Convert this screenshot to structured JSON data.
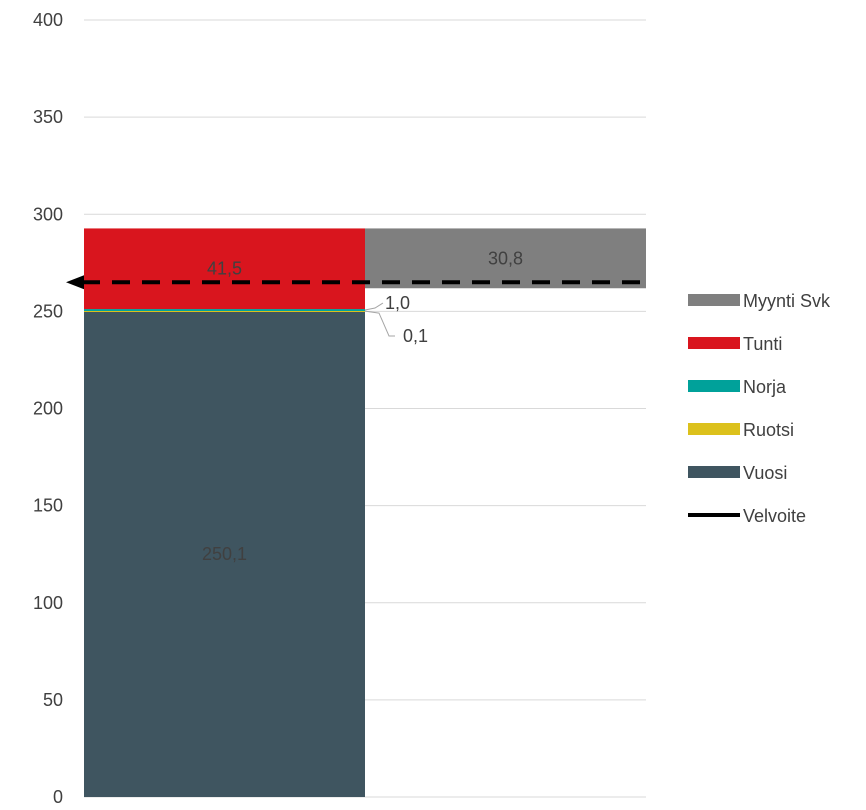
{
  "chart_data": {
    "type": "bar",
    "stacked": true,
    "categories": [
      "",
      ""
    ],
    "ylim": [
      0,
      400
    ],
    "yticks": [
      0,
      50,
      100,
      150,
      200,
      250,
      300,
      350,
      400
    ],
    "grid": true,
    "legend_position": "right",
    "series": [
      {
        "name": "Vuosi",
        "color": "#3f5560",
        "values": [
          250.1,
          0
        ],
        "labels": [
          "250,1",
          ""
        ]
      },
      {
        "name": "Ruotsi",
        "color": "#dcc11c",
        "values": [
          0.1,
          0
        ],
        "labels": [
          "0,1",
          ""
        ]
      },
      {
        "name": "Norja",
        "color": "#00a19a",
        "values": [
          1.0,
          0
        ],
        "labels": [
          "1,0",
          ""
        ]
      },
      {
        "name": "Tunti",
        "color": "#d9151e",
        "values": [
          41.5,
          0
        ],
        "labels": [
          "41,5",
          ""
        ]
      },
      {
        "name": "Myynti Svk",
        "color": "#7f7f7f",
        "values": [
          0,
          30.8
        ],
        "base": [
          0,
          261.9
        ],
        "labels": [
          "",
          "30,8"
        ]
      }
    ],
    "line": {
      "name": "Velvoite",
      "color": "#000000",
      "value": 265,
      "style": "dashed"
    },
    "legend_order": [
      "Myynti Svk",
      "Tunti",
      "Norja",
      "Ruotsi",
      "Vuosi",
      "Velvoite"
    ]
  }
}
